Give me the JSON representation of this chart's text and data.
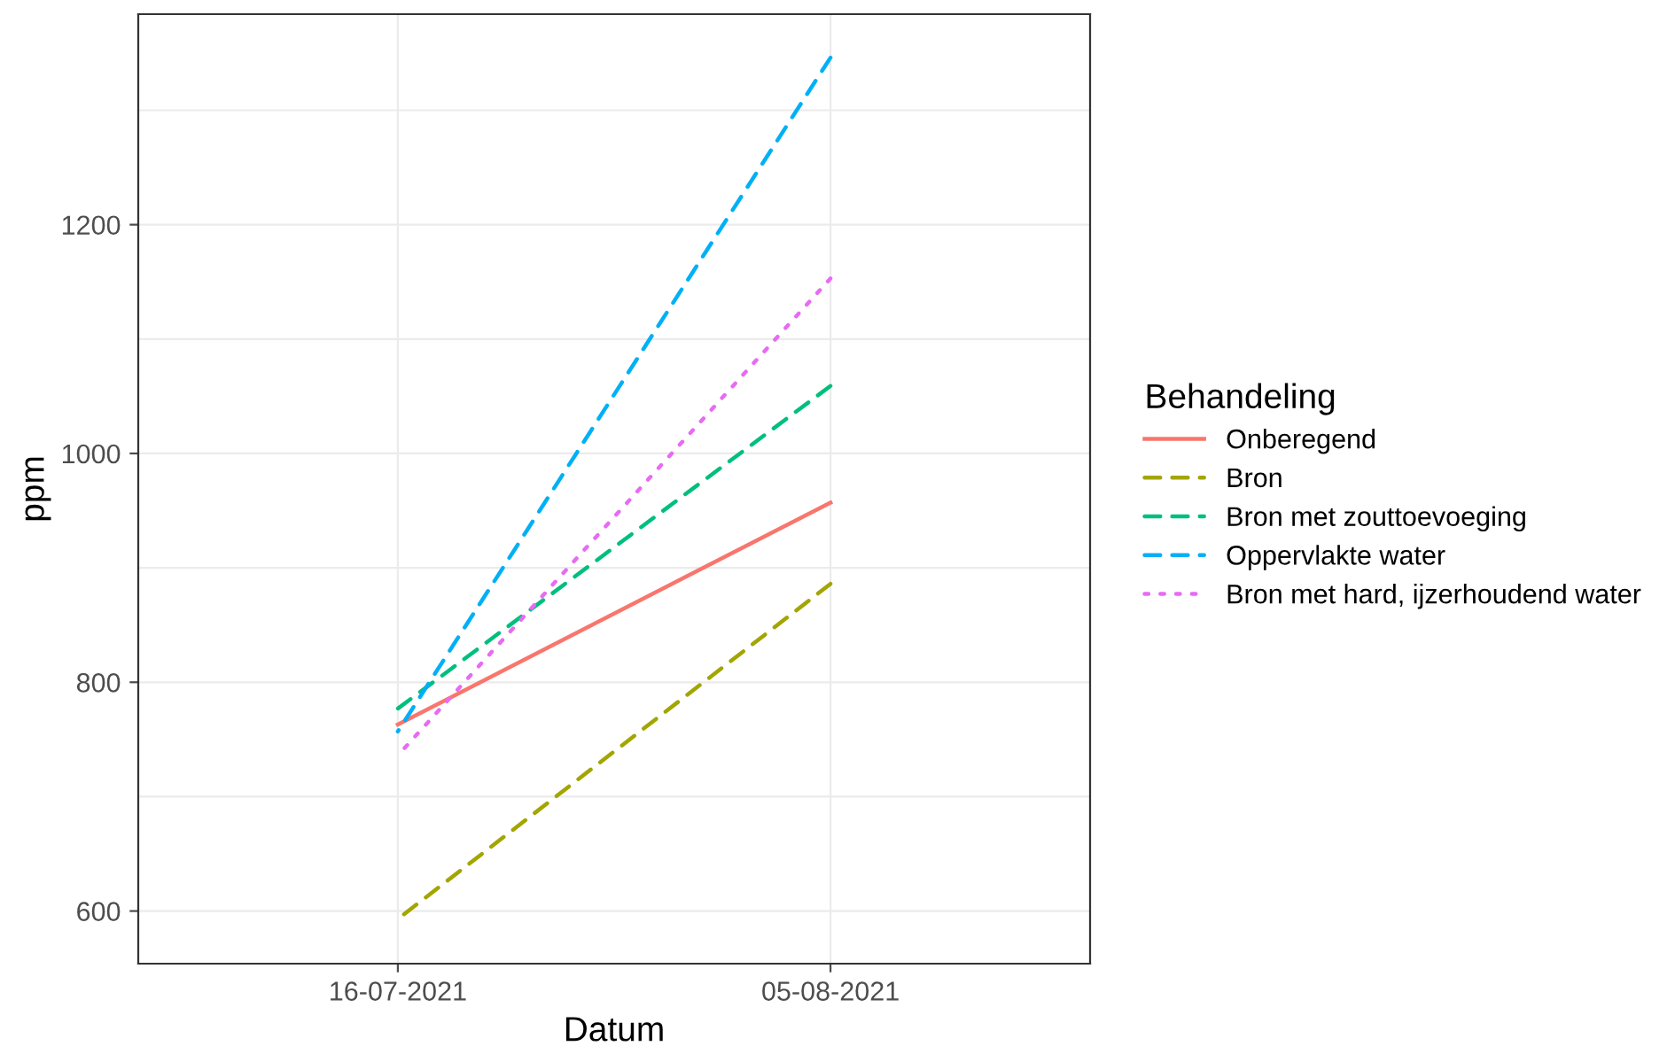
{
  "chart_data": {
    "type": "line",
    "xlabel": "Datum",
    "ylabel": "ppm",
    "legend_title": "Behandeling",
    "legend": "right",
    "categories": [
      "16-07-2021",
      "05-08-2021"
    ],
    "ylim": [
      554,
      1384
    ],
    "yticks": [
      600,
      800,
      1000,
      1200
    ],
    "grid": true,
    "series": [
      {
        "name": "Onberegend",
        "color": "#f8766d",
        "line_style": "solid",
        "values": [
          763,
          957
        ]
      },
      {
        "name": "Bron",
        "color": "#a3a500",
        "line_style": "dashed",
        "values": [
          593,
          886
        ]
      },
      {
        "name": "Bron met zouttoevoeging",
        "color": "#00bf7d",
        "line_style": "dashed",
        "values": [
          777,
          1059
        ]
      },
      {
        "name": "Oppervlakte water",
        "color": "#00b0f6",
        "line_style": "dashed",
        "values": [
          757,
          1346
        ]
      },
      {
        "name": "Bron met hard, ijzerhoudend water",
        "color": "#e76bf3",
        "line_style": "dotted",
        "values": [
          736,
          1153
        ]
      }
    ]
  }
}
